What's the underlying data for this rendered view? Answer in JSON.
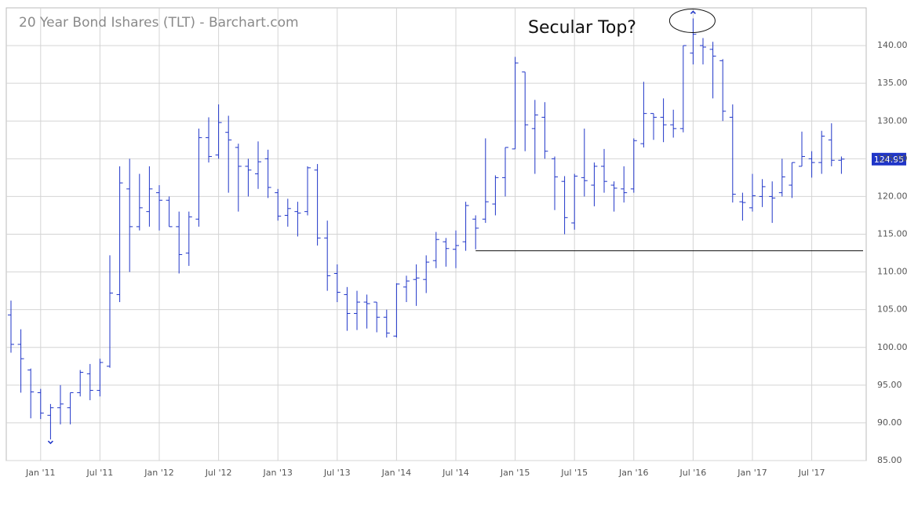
{
  "chart_data": {
    "type": "ohlc",
    "title": "20 Year Bond Ishares (TLT) - Barchart.com",
    "annotation": "Secular Top?",
    "color": "#1f35c8",
    "grid": true,
    "x": [
      "2010-10",
      "2010-11",
      "2010-12",
      "2011-01",
      "2011-02",
      "2011-03",
      "2011-04",
      "2011-05",
      "2011-06",
      "2011-07",
      "2011-08",
      "2011-09",
      "2011-10",
      "2011-11",
      "2011-12",
      "2012-01",
      "2012-02",
      "2012-03",
      "2012-04",
      "2012-05",
      "2012-06",
      "2012-07",
      "2012-08",
      "2012-09",
      "2012-10",
      "2012-11",
      "2012-12",
      "2013-01",
      "2013-02",
      "2013-03",
      "2013-04",
      "2013-05",
      "2013-06",
      "2013-07",
      "2013-08",
      "2013-09",
      "2013-10",
      "2013-11",
      "2013-12",
      "2014-01",
      "2014-02",
      "2014-03",
      "2014-04",
      "2014-05",
      "2014-06",
      "2014-07",
      "2014-08",
      "2014-09",
      "2014-10",
      "2014-11",
      "2014-12",
      "2015-01",
      "2015-02",
      "2015-03",
      "2015-04",
      "2015-05",
      "2015-06",
      "2015-07",
      "2015-08",
      "2015-09",
      "2015-10",
      "2015-11",
      "2015-12",
      "2016-01",
      "2016-02",
      "2016-03",
      "2016-04",
      "2016-05",
      "2016-06",
      "2016-07",
      "2016-08",
      "2016-09",
      "2016-10",
      "2016-11",
      "2016-12",
      "2017-01",
      "2017-02",
      "2017-03",
      "2017-04",
      "2017-05",
      "2017-06",
      "2017-07",
      "2017-08",
      "2017-09",
      "2017-10"
    ],
    "open": [
      104.3,
      100.4,
      97,
      94,
      91,
      92,
      92,
      94,
      96.5,
      94.3,
      97.5,
      107,
      121,
      116,
      118,
      120.5,
      119.5,
      116,
      112.5,
      117,
      127.8,
      125.5,
      128.5,
      126.5,
      124,
      123,
      125,
      120.5,
      117.5,
      118,
      118,
      123.5,
      114.5,
      109.8,
      107,
      104.5,
      106,
      106,
      104,
      101.5,
      108,
      109,
      109,
      111.5,
      114,
      113,
      114,
      117,
      117,
      119,
      122.5,
      126.3,
      136.5,
      129,
      130.5,
      125,
      122,
      116.5,
      122.5,
      121.5,
      124,
      121.5,
      121,
      121,
      127,
      131,
      130.5,
      129.5,
      129,
      139,
      140,
      139.5,
      138,
      130.5,
      119.3,
      118.5,
      120,
      120,
      120.5,
      121.5,
      124,
      125,
      124.5,
      127.5,
      124.8
    ],
    "high": [
      106.2,
      102.4,
      97.2,
      94.5,
      92.5,
      95,
      94,
      97,
      97.8,
      98.5,
      112.2,
      124,
      125,
      123,
      124,
      121.5,
      120,
      118,
      118,
      129,
      130.5,
      132.2,
      130.7,
      127,
      125,
      127.3,
      126.2,
      121,
      119.7,
      119.3,
      124,
      124.3,
      116.8,
      111,
      108,
      107.5,
      107,
      106,
      105,
      108.5,
      109.5,
      111,
      112.2,
      115.3,
      114.5,
      115.5,
      119.3,
      117.5,
      127.7,
      122.8,
      126.5,
      138.5,
      136.5,
      132.8,
      132.5,
      125.3,
      122.7,
      123,
      129,
      124.5,
      126.3,
      122,
      124,
      127.7,
      135.2,
      131,
      133,
      131.5,
      140,
      143.6,
      141,
      140.5,
      138.2,
      132.2,
      120.5,
      123,
      122.3,
      122,
      125,
      124.5,
      128.6,
      126,
      128.7,
      129.7,
      125.3
    ],
    "low": [
      99.3,
      94,
      90.6,
      90.5,
      87.8,
      89.8,
      89.8,
      93.5,
      93,
      93.5,
      97.3,
      106,
      110,
      115.5,
      116,
      115.5,
      116,
      109.8,
      110.8,
      116,
      124.5,
      125,
      120.5,
      118,
      120,
      121,
      119.8,
      116.8,
      116,
      114.7,
      117.5,
      113.5,
      107.5,
      106,
      102.2,
      102.3,
      102.5,
      102,
      101.3,
      101.3,
      106,
      105.5,
      107.2,
      110.5,
      110.7,
      110.5,
      112.8,
      113,
      116.5,
      117.5,
      120,
      126.3,
      126,
      123,
      125,
      118.2,
      115,
      115.6,
      120,
      118.7,
      120.5,
      118,
      119.2,
      120.5,
      126.5,
      127.5,
      127.2,
      127.8,
      128.5,
      137.5,
      137.5,
      133,
      130,
      119.2,
      116.8,
      118,
      118.6,
      116.5,
      120,
      119.8,
      124,
      122.5,
      123,
      124,
      123
    ],
    "close": [
      100.4,
      98.5,
      94.1,
      91.3,
      92,
      92.5,
      94,
      96.7,
      94.3,
      98,
      107.2,
      121.8,
      116,
      118.5,
      121,
      119.5,
      116,
      112.3,
      117.3,
      127.8,
      125.3,
      129.8,
      127.5,
      124,
      123.5,
      124.6,
      121.2,
      117.4,
      118.4,
      117.8,
      123.8,
      114.5,
      109.5,
      107.3,
      104.5,
      106,
      105.8,
      104,
      101.9,
      108.4,
      108.8,
      109.2,
      111.3,
      114.3,
      113.1,
      113.5,
      118.8,
      115.8,
      119.3,
      122.5,
      126.5,
      137.7,
      129.5,
      130.8,
      126,
      122.6,
      117.2,
      122.7,
      122.1,
      124,
      122,
      121.1,
      120.5,
      127.4,
      131,
      130.5,
      129.5,
      129,
      140,
      141.5,
      139.8,
      138.6,
      131.3,
      120.3,
      119.2,
      120.1,
      121.3,
      119.8,
      122.6,
      124.5,
      125.3,
      124.5,
      128,
      124.8,
      124.95
    ],
    "hline": {
      "value": 112.8,
      "from": "2014-09"
    },
    "ylim": [
      85,
      145
    ],
    "yticks": [
      {
        "value": 85,
        "label": "85.00"
      },
      {
        "value": 90,
        "label": "90.00"
      },
      {
        "value": 95,
        "label": "95.00"
      },
      {
        "value": 100,
        "label": "100.00"
      },
      {
        "value": 105,
        "label": "105.00"
      },
      {
        "value": 110,
        "label": "110.00"
      },
      {
        "value": 115,
        "label": "115.00"
      },
      {
        "value": 120,
        "label": "120.00"
      },
      {
        "value": 125,
        "label": "125.00"
      },
      {
        "value": 130,
        "label": "130.00"
      },
      {
        "value": 135,
        "label": "135.00"
      },
      {
        "value": 140,
        "label": "140.00"
      }
    ],
    "xticks": [
      {
        "value": "2011-01",
        "label": "Jan '11"
      },
      {
        "value": "2011-07",
        "label": "Jul '11"
      },
      {
        "value": "2012-01",
        "label": "Jan '12"
      },
      {
        "value": "2012-07",
        "label": "Jul '12"
      },
      {
        "value": "2013-01",
        "label": "Jan '13"
      },
      {
        "value": "2013-07",
        "label": "Jul '13"
      },
      {
        "value": "2014-01",
        "label": "Jan '14"
      },
      {
        "value": "2014-07",
        "label": "Jul '14"
      },
      {
        "value": "2015-01",
        "label": "Jan '15"
      },
      {
        "value": "2015-07",
        "label": "Jul '15"
      },
      {
        "value": "2016-01",
        "label": "Jan '16"
      },
      {
        "value": "2016-07",
        "label": "Jul '16"
      },
      {
        "value": "2017-01",
        "label": "Jan '17"
      },
      {
        "value": "2017-07",
        "label": "Jul '17"
      }
    ]
  }
}
